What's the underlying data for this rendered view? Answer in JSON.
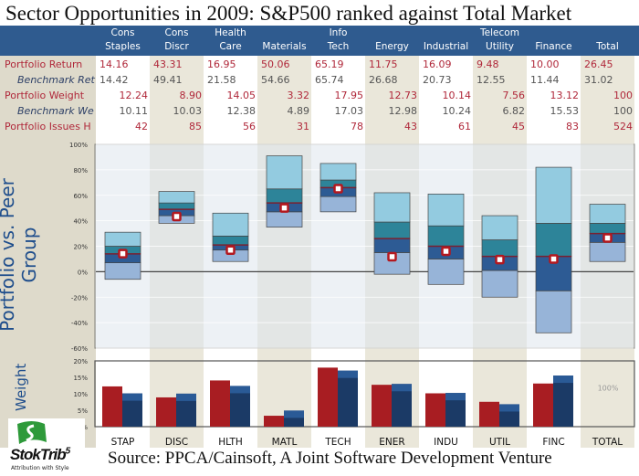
{
  "title": "Sector Opportunities in 2009: S&P500 ranked against Total Market",
  "table": {
    "headers": [
      [
        "Cons",
        "Staples"
      ],
      [
        "Cons",
        "Discr"
      ],
      [
        "Health",
        "Care"
      ],
      [
        "",
        "Materials"
      ],
      [
        "Info",
        "Tech"
      ],
      [
        "",
        "Energy"
      ],
      [
        "",
        "Industrial"
      ],
      [
        "Telecom",
        "Utility"
      ],
      [
        "",
        "Finance"
      ],
      [
        "",
        "Total"
      ]
    ],
    "rows": [
      {
        "label": "Portfolio Return",
        "style": "red",
        "values": [
          "14.16",
          "43.31",
          "16.95",
          "50.06",
          "65.19",
          "11.75",
          "16.09",
          "9.48",
          "10.00",
          "26.45"
        ]
      },
      {
        "label": "Benchmark Ret",
        "style": "ital",
        "values": [
          "14.42",
          "49.41",
          "21.58",
          "54.66",
          "65.74",
          "26.68",
          "20.73",
          "12.55",
          "11.44",
          "31.02"
        ]
      },
      {
        "label": "Portfolio Weight",
        "style": "red",
        "values": [
          "12.24",
          "8.90",
          "14.05",
          "3.32",
          "17.95",
          "12.73",
          "10.14",
          "7.56",
          "13.12",
          "100"
        ]
      },
      {
        "label": "Benchmark We",
        "style": "ital",
        "values": [
          "10.11",
          "10.03",
          "12.38",
          "4.89",
          "17.03",
          "12.98",
          "10.24",
          "6.82",
          "15.53",
          "100"
        ]
      },
      {
        "label": "Portfolio Issues H",
        "style": "red",
        "values": [
          "42",
          "85",
          "56",
          "31",
          "78",
          "43",
          "61",
          "45",
          "83",
          "524"
        ]
      }
    ]
  },
  "chart_data": [
    {
      "type": "floating-box",
      "ylabel": "Portfolio vs. Peer Group",
      "ylim": [
        -60,
        100
      ],
      "yticks": [
        "100%",
        "80%",
        "60%",
        "40%",
        "20%",
        "0%",
        "-20%",
        "-40%",
        "-60%"
      ],
      "categories": [
        "STAP",
        "DISC",
        "HLTH",
        "MATL",
        "TECH",
        "ENER",
        "INDU",
        "UTIL",
        "FINC",
        "TOTAL"
      ],
      "ranges": [
        [
          -6,
          7,
          14,
          20,
          31
        ],
        [
          38,
          44,
          49,
          54,
          63
        ],
        [
          8,
          17,
          21,
          28,
          46
        ],
        [
          35,
          47,
          54,
          65,
          91
        ],
        [
          47,
          59,
          66,
          72,
          85
        ],
        [
          -2,
          15,
          26,
          39,
          62
        ],
        [
          -10,
          10,
          20,
          36,
          61
        ],
        [
          -20,
          1,
          12,
          25,
          44
        ],
        [
          -48,
          -15,
          12,
          38,
          82
        ],
        [
          8,
          23,
          30,
          38,
          53
        ]
      ],
      "portfolio": [
        14.16,
        43.31,
        16.95,
        50.06,
        65.19,
        11.75,
        16.09,
        9.48,
        10.0,
        26.45
      ],
      "colors": {
        "band1": "#97b4d8",
        "band2": "#2d5b94",
        "band3": "#2d8499",
        "band4": "#93cbe0",
        "marker": "#b3181f"
      }
    },
    {
      "type": "bar",
      "ylabel": "Weight",
      "ylim": [
        0,
        20
      ],
      "yticks": [
        "20%",
        "15%",
        "10%",
        "5%",
        "%"
      ],
      "categories": [
        "STAP",
        "DISC",
        "HLTH",
        "MATL",
        "TECH",
        "ENER",
        "INDU",
        "UTIL",
        "FINC",
        "TOTAL"
      ],
      "series": [
        {
          "values": [
            12.24,
            8.9,
            14.05,
            3.32,
            17.95,
            12.73,
            10.14,
            7.56,
            13.12,
            null
          ],
          "color": "#a81d22"
        },
        {
          "values": [
            10.11,
            10.03,
            12.38,
            4.89,
            17.03,
            12.98,
            10.24,
            6.82,
            15.53,
            null
          ],
          "color": "#2a5a96"
        }
      ],
      "total_annotation": "100%"
    }
  ],
  "source": "Source: PPCA/Cainsoft, A Joint Software Development Venture",
  "logo": {
    "brand": "StokTrib",
    "sup": "5",
    "tagline": "Attribution with Style"
  }
}
